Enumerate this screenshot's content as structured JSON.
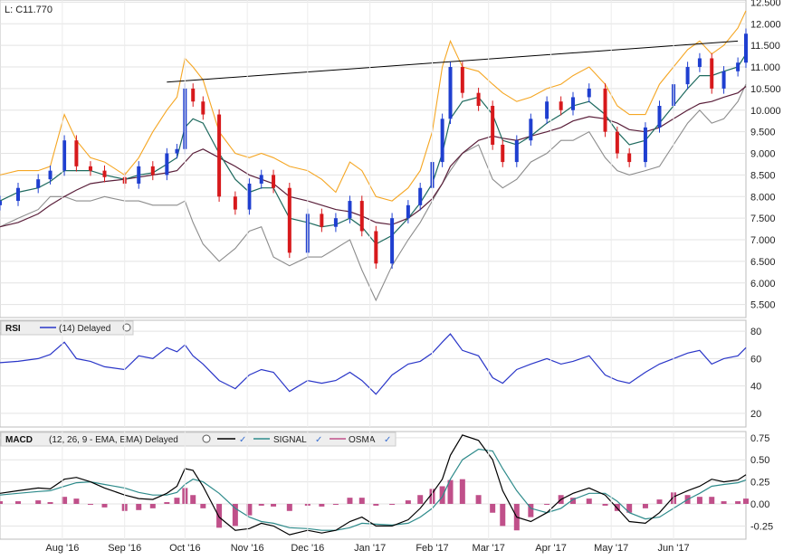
{
  "price_panel": {
    "last_label": "L: C11.770",
    "y_ticks": [
      "5.500",
      "6.000",
      "6.500",
      "7.000",
      "7.500",
      "8.000",
      "8.500",
      "9.000",
      "9.500",
      "10.000",
      "10.500",
      "11.000",
      "11.500",
      "12.000",
      "12.500"
    ]
  },
  "rsi_panel": {
    "title": "RSI",
    "legend": "(14) Delayed",
    "y_ticks": [
      "20",
      "40",
      "60",
      "80"
    ]
  },
  "macd_panel": {
    "title": "MACD",
    "legend": "(12, 26, 9 - EMA, EMA) Delayed",
    "signal_label": "SIGNAL",
    "osma_label": "OSMA",
    "y_ticks": [
      "-0.25",
      "0.00",
      "0.25",
      "0.50",
      "0.75"
    ]
  },
  "x_axis": {
    "months": [
      "Aug '16",
      "Sep '16",
      "Oct '16",
      "Nov '16",
      "Dec '16",
      "Jan '17",
      "Feb '17",
      "Mar '17",
      "Apr '17",
      "May '17",
      "Jun '17"
    ]
  },
  "colors": {
    "up_candle": "#1f3fd0",
    "down_candle": "#d7191c",
    "upper_band": "#f5a623",
    "lower_band": "#8c8c8c",
    "sma_short": "#1e6a5e",
    "sma_long": "#5a1f3a",
    "rsi_line": "#2a36c8",
    "macd_line": "#000000",
    "signal_line": "#2e8b8b",
    "osma_bar": "#c0508a",
    "trendline": "#000000"
  },
  "chart_data": [
    {
      "type": "candlestick",
      "panel": "price",
      "ylim": [
        5.2,
        12.55
      ],
      "x_range": [
        "2016-07-01",
        "2017-07-07"
      ],
      "series": [
        {
          "name": "Price",
          "x": [
            "2016-07-01",
            "2016-07-10",
            "2016-07-20",
            "2016-07-26",
            "2016-08-02",
            "2016-08-08",
            "2016-08-15",
            "2016-08-22",
            "2016-09-01",
            "2016-09-08",
            "2016-09-15",
            "2016-09-22",
            "2016-09-27",
            "2016-10-01",
            "2016-10-05",
            "2016-10-10",
            "2016-10-18",
            "2016-10-26",
            "2016-11-02",
            "2016-11-08",
            "2016-11-14",
            "2016-11-22",
            "2016-12-01",
            "2016-12-08",
            "2016-12-15",
            "2016-12-22",
            "2016-12-28",
            "2017-01-04",
            "2017-01-12",
            "2017-01-20",
            "2017-01-26",
            "2017-02-01",
            "2017-02-06",
            "2017-02-10",
            "2017-02-16",
            "2017-02-24",
            "2017-03-03",
            "2017-03-08",
            "2017-03-15",
            "2017-03-22",
            "2017-03-30",
            "2017-04-06",
            "2017-04-12",
            "2017-04-20",
            "2017-04-28",
            "2017-05-04",
            "2017-05-10",
            "2017-05-18",
            "2017-05-25",
            "2017-06-01",
            "2017-06-08",
            "2017-06-14",
            "2017-06-20",
            "2017-06-26",
            "2017-07-03",
            "2017-07-07"
          ],
          "close": [
            7.9,
            8.2,
            8.4,
            8.6,
            9.3,
            8.7,
            8.6,
            8.45,
            8.3,
            8.7,
            8.5,
            9.0,
            9.1,
            10.5,
            10.2,
            9.9,
            8.0,
            7.7,
            8.3,
            8.5,
            8.2,
            6.7,
            7.6,
            7.3,
            7.5,
            7.9,
            7.2,
            6.45,
            7.5,
            7.8,
            8.2,
            8.8,
            9.8,
            11.0,
            10.4,
            10.1,
            9.2,
            8.8,
            9.3,
            9.8,
            10.2,
            10.0,
            10.3,
            10.5,
            9.5,
            9.0,
            8.8,
            9.6,
            10.1,
            10.6,
            11.0,
            11.2,
            10.5,
            10.9,
            11.1,
            11.77
          ]
        },
        {
          "name": "Upper band",
          "values": [
            8.5,
            8.6,
            8.6,
            8.7,
            9.9,
            9.3,
            8.9,
            8.8,
            8.5,
            8.9,
            9.5,
            10.0,
            10.3,
            11.2,
            11.0,
            10.7,
            9.5,
            9.0,
            8.9,
            9.0,
            8.9,
            8.7,
            8.6,
            8.4,
            8.1,
            8.8,
            8.6,
            8.0,
            7.9,
            8.2,
            8.6,
            9.5,
            11.0,
            11.6,
            11.0,
            10.9,
            10.6,
            10.4,
            10.2,
            10.3,
            10.5,
            10.6,
            10.8,
            11.0,
            10.6,
            10.1,
            9.9,
            9.9,
            10.6,
            11.0,
            11.4,
            11.6,
            11.3,
            11.5,
            11.9,
            12.3
          ]
        },
        {
          "name": "Lower band",
          "values": [
            7.3,
            7.5,
            7.7,
            8.0,
            8.0,
            7.9,
            7.9,
            8.0,
            7.9,
            7.9,
            7.8,
            7.8,
            7.8,
            7.9,
            7.4,
            6.9,
            6.5,
            6.8,
            7.2,
            7.3,
            6.6,
            6.4,
            6.6,
            6.6,
            6.8,
            7.0,
            6.3,
            5.6,
            6.4,
            7.0,
            7.4,
            7.9,
            8.3,
            8.6,
            9.0,
            9.2,
            8.4,
            8.2,
            8.4,
            8.8,
            9.0,
            9.3,
            9.3,
            9.5,
            8.9,
            8.6,
            8.5,
            8.6,
            8.7,
            9.2,
            9.7,
            10.0,
            9.7,
            9.8,
            10.2,
            10.6
          ]
        },
        {
          "name": "SMA short",
          "values": [
            7.9,
            8.1,
            8.2,
            8.35,
            8.6,
            8.6,
            8.6,
            8.5,
            8.4,
            8.5,
            8.55,
            8.75,
            8.9,
            9.6,
            9.8,
            9.7,
            9.0,
            8.4,
            8.1,
            8.2,
            8.2,
            7.5,
            7.4,
            7.3,
            7.35,
            7.5,
            7.3,
            6.9,
            7.1,
            7.5,
            7.85,
            8.3,
            9.0,
            9.8,
            10.2,
            10.3,
            9.9,
            9.3,
            9.2,
            9.4,
            9.7,
            9.9,
            10.1,
            10.2,
            9.9,
            9.5,
            9.2,
            9.3,
            9.7,
            10.1,
            10.5,
            10.8,
            10.8,
            10.9,
            11.0,
            11.3
          ]
        },
        {
          "name": "SMA long",
          "values": [
            7.3,
            7.4,
            7.6,
            7.8,
            8.0,
            8.15,
            8.3,
            8.35,
            8.4,
            8.45,
            8.5,
            8.55,
            8.6,
            8.8,
            9.0,
            9.1,
            8.9,
            8.7,
            8.5,
            8.4,
            8.3,
            8.0,
            7.9,
            7.8,
            7.7,
            7.65,
            7.55,
            7.4,
            7.35,
            7.5,
            7.7,
            7.95,
            8.3,
            8.7,
            9.0,
            9.3,
            9.4,
            9.35,
            9.3,
            9.4,
            9.5,
            9.6,
            9.75,
            9.85,
            9.8,
            9.7,
            9.55,
            9.5,
            9.6,
            9.8,
            10.0,
            10.15,
            10.2,
            10.3,
            10.4,
            10.55
          ]
        },
        {
          "name": "Trendline",
          "x": [
            "2016-09-22",
            "2017-07-03"
          ],
          "values": [
            10.65,
            11.6
          ]
        }
      ]
    },
    {
      "type": "line",
      "panel": "rsi",
      "ylim": [
        10,
        88
      ],
      "series": [
        {
          "name": "(14) Delayed",
          "values": [
            57,
            58,
            60,
            63,
            72,
            60,
            58,
            54,
            52,
            62,
            60,
            68,
            65,
            70,
            62,
            56,
            44,
            38,
            48,
            52,
            50,
            36,
            44,
            42,
            44,
            50,
            44,
            34,
            48,
            56,
            58,
            64,
            72,
            78,
            66,
            62,
            46,
            42,
            52,
            56,
            60,
            56,
            58,
            62,
            48,
            44,
            42,
            50,
            56,
            60,
            64,
            66,
            56,
            60,
            62,
            68
          ]
        }
      ]
    },
    {
      "type": "bar+line",
      "panel": "macd",
      "ylim": [
        -0.4,
        0.82
      ],
      "series": [
        {
          "name": "MACD",
          "values": [
            0.12,
            0.15,
            0.18,
            0.17,
            0.28,
            0.3,
            0.25,
            0.18,
            0.1,
            0.06,
            0.05,
            0.12,
            0.2,
            0.4,
            0.38,
            0.2,
            -0.15,
            -0.3,
            -0.28,
            -0.22,
            -0.25,
            -0.35,
            -0.3,
            -0.33,
            -0.3,
            -0.2,
            -0.15,
            -0.25,
            -0.25,
            -0.18,
            -0.05,
            0.12,
            0.28,
            0.55,
            0.78,
            0.72,
            0.5,
            0.15,
            -0.15,
            -0.2,
            -0.1,
            0.05,
            0.12,
            0.18,
            0.1,
            -0.05,
            -0.2,
            -0.22,
            -0.1,
            0.08,
            0.15,
            0.2,
            0.28,
            0.25,
            0.27,
            0.33
          ]
        },
        {
          "name": "SIGNAL",
          "values": [
            0.1,
            0.12,
            0.14,
            0.15,
            0.2,
            0.24,
            0.25,
            0.22,
            0.18,
            0.13,
            0.1,
            0.1,
            0.13,
            0.22,
            0.28,
            0.25,
            0.12,
            -0.05,
            -0.15,
            -0.2,
            -0.22,
            -0.27,
            -0.28,
            -0.3,
            -0.3,
            -0.27,
            -0.22,
            -0.23,
            -0.24,
            -0.22,
            -0.15,
            -0.05,
            0.08,
            0.28,
            0.5,
            0.62,
            0.6,
            0.4,
            0.15,
            -0.05,
            -0.1,
            -0.05,
            0.05,
            0.12,
            0.12,
            0.03,
            -0.1,
            -0.17,
            -0.15,
            -0.05,
            0.05,
            0.12,
            0.2,
            0.22,
            0.24,
            0.27
          ]
        },
        {
          "name": "OSMA",
          "values": [
            0.03,
            0.03,
            0.04,
            0.02,
            0.08,
            0.06,
            0.0,
            -0.04,
            -0.08,
            -0.07,
            -0.05,
            0.02,
            0.07,
            0.18,
            0.1,
            -0.05,
            -0.27,
            -0.25,
            -0.13,
            -0.02,
            -0.03,
            -0.08,
            -0.02,
            -0.03,
            0.0,
            0.07,
            0.07,
            -0.02,
            -0.01,
            0.04,
            0.1,
            0.17,
            0.2,
            0.27,
            0.28,
            0.1,
            -0.1,
            -0.25,
            -0.3,
            -0.15,
            0.0,
            0.1,
            0.07,
            0.06,
            -0.02,
            -0.08,
            -0.1,
            -0.05,
            0.05,
            0.13,
            0.1,
            0.08,
            0.08,
            0.03,
            0.03,
            0.06
          ]
        }
      ]
    }
  ]
}
